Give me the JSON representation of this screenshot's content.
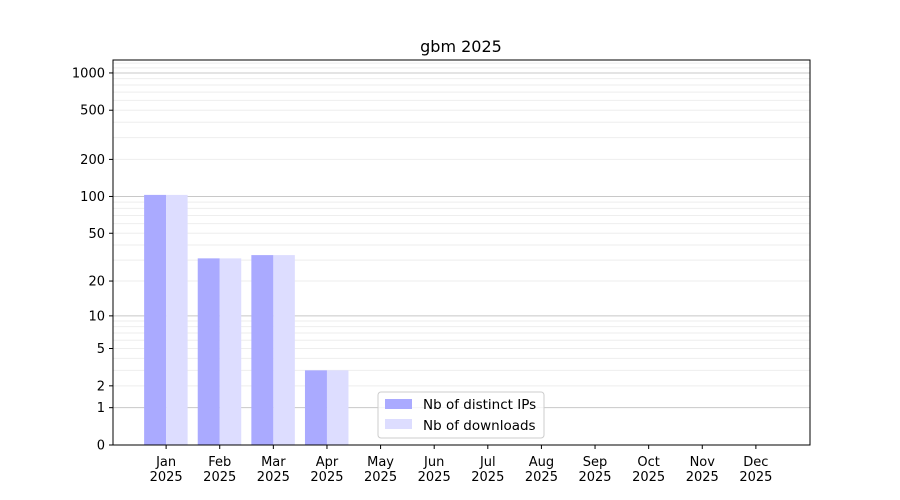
{
  "chart_data": {
    "type": "bar",
    "title": "gbm 2025",
    "xlabel": "",
    "ylabel": "",
    "yscale": "log(y+1)",
    "ylim": [
      0,
      1250
    ],
    "yticks": [
      0,
      1,
      2,
      5,
      10,
      20,
      50,
      100,
      200,
      500,
      1000
    ],
    "grid": true,
    "legend_position": "lower-center",
    "categories": [
      "Jan\n2025",
      "Feb\n2025",
      "Mar\n2025",
      "Apr\n2025",
      "May\n2025",
      "Jun\n2025",
      "Jul\n2025",
      "Aug\n2025",
      "Sep\n2025",
      "Oct\n2025",
      "Nov\n2025",
      "Dec\n2025"
    ],
    "series": [
      {
        "name": "Nb of distinct IPs",
        "color": "#aaaaff",
        "values": [
          103,
          31,
          33,
          3,
          0,
          0,
          0,
          0,
          0,
          0,
          0,
          0
        ]
      },
      {
        "name": "Nb of downloads",
        "color": "#ddddff",
        "values": [
          103,
          31,
          33,
          3,
          0,
          0,
          0,
          0,
          0,
          0,
          0,
          0
        ]
      }
    ]
  }
}
